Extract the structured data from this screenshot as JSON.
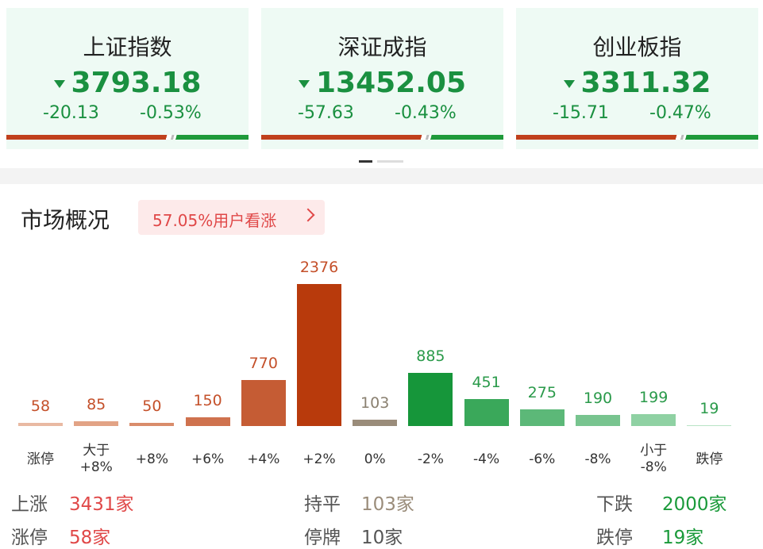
{
  "indices": [
    {
      "name": "上证指数",
      "value": "3793.18",
      "change": "-20.13",
      "percent": "-0.53%"
    },
    {
      "name": "深证成指",
      "value": "13452.05",
      "change": "-57.63",
      "percent": "-0.43%"
    },
    {
      "name": "创业板指",
      "value": "3311.32",
      "change": "-15.71",
      "percent": "-0.47%"
    }
  ],
  "section_title": "市场概况",
  "sentiment_badge": "57.05%用户看涨",
  "chart_data": {
    "type": "bar",
    "categories": [
      "涨停",
      "大于\n+8%",
      "+8%",
      "+6%",
      "+4%",
      "+2%",
      "0%",
      "-2%",
      "-4%",
      "-6%",
      "-8%",
      "小于\n-8%",
      "跌停"
    ],
    "values": [
      58,
      85,
      50,
      150,
      770,
      2376,
      103,
      885,
      451,
      275,
      190,
      199,
      19
    ],
    "colors": [
      "#e9b9a2",
      "#e2a385",
      "#d98c6b",
      "#cf724e",
      "#c55c34",
      "#b83a0c",
      "#9a8c7a",
      "#16963a",
      "#3aa85a",
      "#5cb878",
      "#78c48f",
      "#8fd1a3",
      "#b9e4c6"
    ],
    "label_colors": [
      "#c4502a",
      "#c4502a",
      "#c4502a",
      "#c4502a",
      "#c4502a",
      "#c4502a",
      "#8a8070",
      "#2a9a4a",
      "#2a9a4a",
      "#2a9a4a",
      "#2a9a4a",
      "#2a9a4a",
      "#2a9a4a"
    ]
  },
  "summary": [
    [
      {
        "label": "上涨",
        "value": "3431家",
        "color": "#e04848"
      },
      {
        "label": "持平",
        "value": "103家",
        "color": "#9a8c7a"
      },
      {
        "label": "下跌",
        "value": "2000家",
        "color": "#1a9a3a"
      }
    ],
    [
      {
        "label": "涨停",
        "value": "58家",
        "color": "#e04848"
      },
      {
        "label": "停牌",
        "value": "10家",
        "color": "#555555"
      },
      {
        "label": "跌停",
        "value": "19家",
        "color": "#1a9a3a"
      }
    ]
  ]
}
